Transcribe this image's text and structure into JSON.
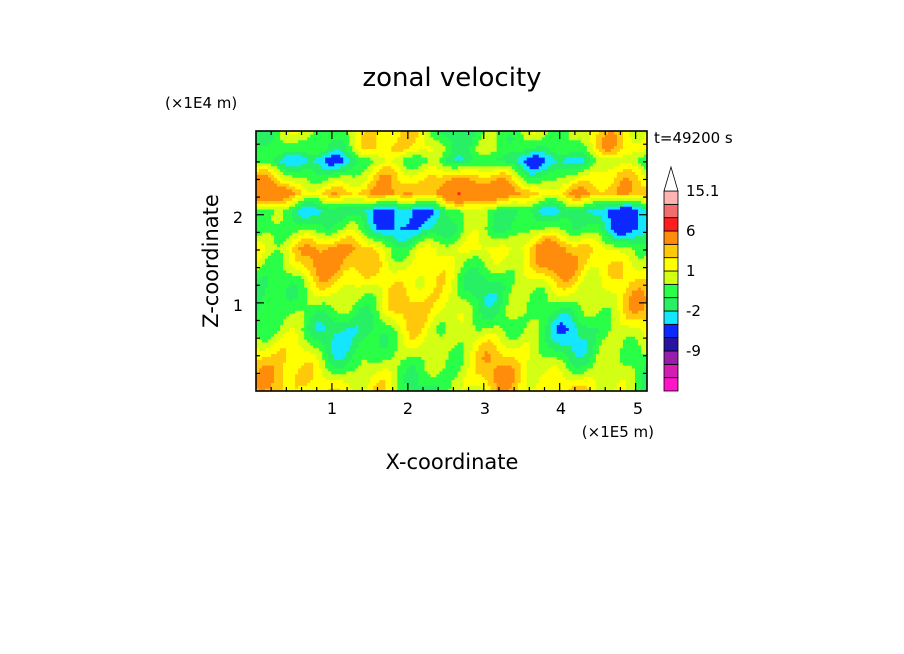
{
  "chart_data": {
    "type": "heatmap",
    "title": "zonal velocity",
    "xlabel": "X-coordinate",
    "ylabel": "Z-coordinate",
    "x_unit": "(×1E5 m)",
    "y_unit": "(×1E4 m)",
    "time_label": "t=49200 s",
    "xlim": [
      0,
      5.15
    ],
    "ylim": [
      0,
      2.95
    ],
    "x_ticks": [
      "1",
      "2",
      "3",
      "4",
      "5"
    ],
    "y_ticks": [
      "1",
      "2"
    ],
    "colorbar": {
      "labels": [
        "15.1",
        "6",
        "1",
        "-2",
        "-9"
      ],
      "label_values": [
        15.1,
        6,
        1,
        -2,
        -9
      ],
      "levels": [
        -15,
        -12,
        -9,
        -6,
        -3,
        -2,
        -1,
        0,
        1,
        2,
        3,
        6,
        9,
        12,
        15.1
      ],
      "colors": [
        "#ff14c8",
        "#d21eb4",
        "#961eaa",
        "#2814a0",
        "#0a28ff",
        "#14e6ff",
        "#28f064",
        "#28ff46",
        "#d2ff14",
        "#ffff00",
        "#ffc80a",
        "#ff8c0a",
        "#ff1e1e",
        "#f06e6e",
        "#ffb4b4",
        "#ffffff"
      ]
    },
    "field_bands": [
      {
        "z": 2.75,
        "u": 0.3
      },
      {
        "z": 2.62,
        "u": -1.4
      },
      {
        "z": 2.45,
        "u": 1.2
      },
      {
        "z": 2.25,
        "u": 3.5
      },
      {
        "z": 2.05,
        "u": -1.8
      },
      {
        "z": 1.85,
        "u": -1.2
      },
      {
        "z": 1.62,
        "u": 1.6
      },
      {
        "z": 1.42,
        "u": 1.5
      },
      {
        "z": 1.2,
        "u": 0.6
      },
      {
        "z": 0.95,
        "u": 0.4
      },
      {
        "z": 0.7,
        "u": -0.3
      },
      {
        "z": 0.45,
        "u": 0.3
      },
      {
        "z": 0.15,
        "u": 1.0
      }
    ]
  }
}
